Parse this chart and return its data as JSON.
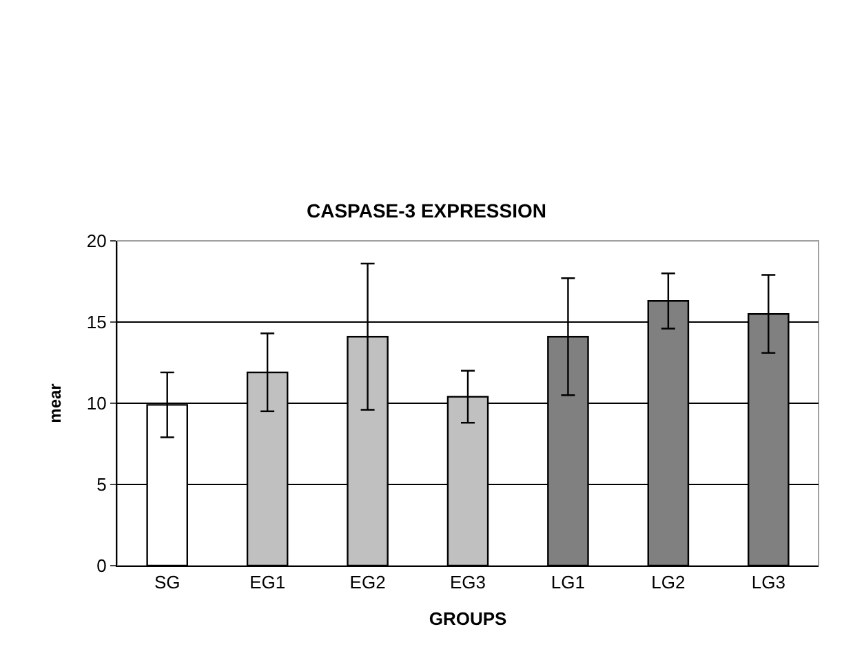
{
  "chart_data": {
    "type": "bar",
    "title": "CASPASE-3 EXPRESSION",
    "xlabel": "GROUPS",
    "ylabel": "mear",
    "categories": [
      "SG",
      "EG1",
      "EG2",
      "EG3",
      "LG1",
      "LG2",
      "LG3"
    ],
    "values": [
      9.9,
      11.9,
      14.1,
      10.4,
      14.1,
      16.3,
      15.5
    ],
    "errors": [
      2.0,
      2.4,
      4.5,
      1.6,
      3.6,
      1.7,
      2.4
    ],
    "colors": [
      "#ffffff",
      "#c0c0c0",
      "#c0c0c0",
      "#c0c0c0",
      "#808080",
      "#808080",
      "#808080"
    ],
    "ylim": [
      0,
      20
    ],
    "yticks": [
      0,
      5,
      10,
      15,
      20
    ],
    "grid": "y"
  }
}
